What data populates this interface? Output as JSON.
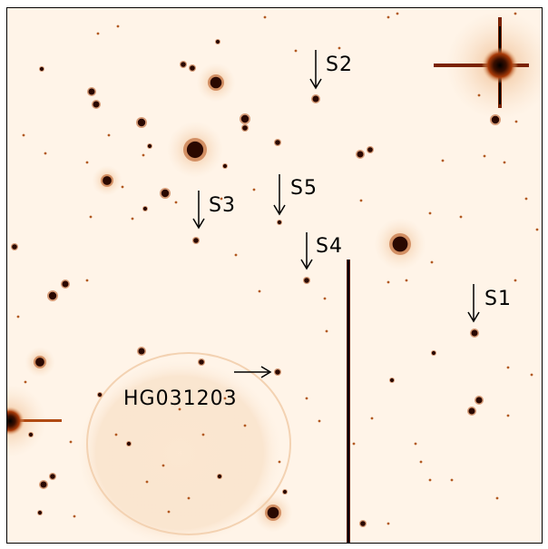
{
  "image": {
    "colors": {
      "sky": "#fff4e8",
      "halo": "#f2c79a",
      "star_core": "#000000",
      "star_mid": "#a83a08",
      "annotation": "#000000"
    }
  },
  "labels": {
    "s1": "S1",
    "s2": "S2",
    "s3": "S3",
    "s4": "S4",
    "s5": "S5",
    "host": "HG031203"
  }
}
